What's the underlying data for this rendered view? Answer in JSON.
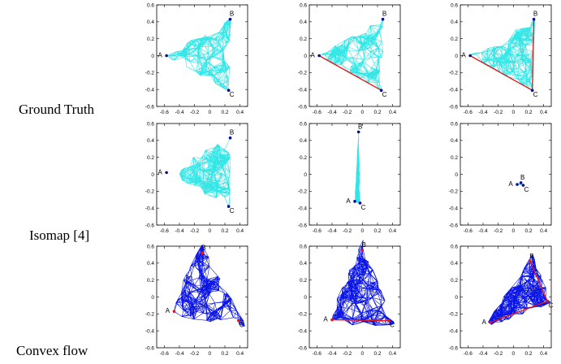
{
  "row_labels": [
    "Ground Truth",
    "Isomap [4]",
    "Convex flow"
  ],
  "colors": {
    "cyan_mesh": "#33e6e6",
    "blue_mesh": "#0a14e6",
    "red_path": "#e61414",
    "point": "#0a0a8c",
    "axis": "#000000"
  },
  "point_labels": [
    "A",
    "B",
    "C"
  ],
  "axes": {
    "xticks": [
      -0.6,
      -0.4,
      -0.2,
      0,
      0.2,
      0.4
    ],
    "yticks": [
      0.6,
      0.4,
      0.2,
      0,
      -0.2,
      -0.4,
      -0.6
    ],
    "xlim": [
      -0.7,
      0.5
    ],
    "ylim": [
      -0.6,
      0.6
    ]
  },
  "chart_data": [
    {
      "type": "scatter",
      "row": "Ground Truth",
      "col": 1,
      "mesh": "cyan",
      "points": {
        "A": [
          -0.57,
          0.0
        ],
        "B": [
          0.27,
          0.43
        ],
        "C": [
          0.25,
          -0.41
        ]
      }
    },
    {
      "type": "scatter",
      "row": "Ground Truth",
      "col": 2,
      "mesh": "cyan",
      "points": {
        "A": [
          -0.57,
          0.0
        ],
        "B": [
          0.27,
          0.43
        ],
        "C": [
          0.25,
          -0.41
        ]
      },
      "path": "A-C"
    },
    {
      "type": "scatter",
      "row": "Ground Truth",
      "col": 3,
      "mesh": "cyan",
      "points": {
        "A": [
          -0.57,
          0.0
        ],
        "B": [
          0.27,
          0.43
        ],
        "C": [
          0.25,
          -0.41
        ]
      },
      "path": "A-C-B"
    },
    {
      "type": "scatter",
      "row": "Isomap [4]",
      "col": 1,
      "mesh": "cyan",
      "points": {
        "A": [
          -0.57,
          0.02
        ],
        "B": [
          0.27,
          0.43
        ],
        "C": [
          0.25,
          -0.38
        ]
      }
    },
    {
      "type": "scatter",
      "row": "Isomap [4]",
      "col": 2,
      "mesh": "cyan",
      "points": {
        "A": [
          -0.1,
          -0.32
        ],
        "B": [
          -0.05,
          0.5
        ],
        "C": [
          -0.03,
          -0.34
        ]
      }
    },
    {
      "type": "scatter",
      "row": "Isomap [4]",
      "col": 3,
      "mesh": "cyan",
      "points": {
        "A": [
          0.05,
          -0.12
        ],
        "B": [
          0.1,
          -0.1
        ],
        "C": [
          0.13,
          -0.13
        ]
      }
    },
    {
      "type": "scatter",
      "row": "Convex flow",
      "col": 1,
      "mesh": "blue",
      "points": {
        "A": [
          -0.47,
          -0.17
        ],
        "B": [
          -0.1,
          0.52
        ],
        "C": [
          0.38,
          -0.28
        ]
      }
    },
    {
      "type": "scatter",
      "row": "Convex flow",
      "col": 2,
      "mesh": "blue",
      "points": {
        "A": [
          -0.4,
          -0.27
        ],
        "B": [
          0.0,
          0.55
        ],
        "C": [
          0.35,
          -0.28
        ]
      },
      "path": "A-C"
    },
    {
      "type": "scatter",
      "row": "Convex flow",
      "col": 3,
      "mesh": "blue",
      "points": {
        "A": [
          -0.3,
          -0.3
        ],
        "B": [
          0.22,
          0.42
        ],
        "C": [
          0.45,
          -0.05
        ]
      },
      "path": "A-C-B"
    }
  ]
}
